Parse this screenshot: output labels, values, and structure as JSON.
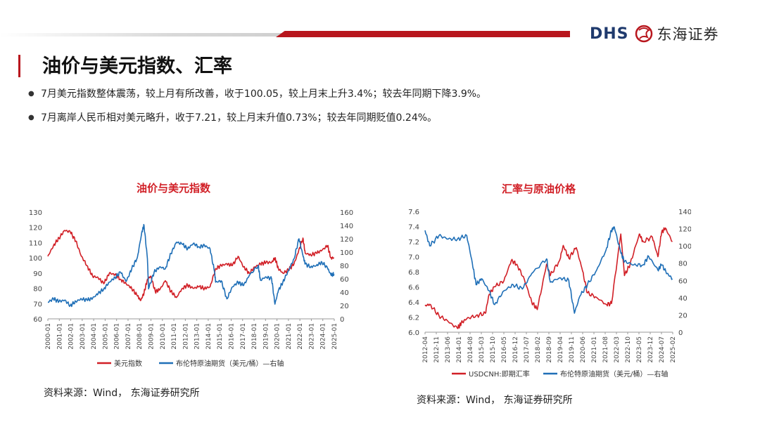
{
  "header": {
    "logo_text": "DHS",
    "logo_cn": "东海证券",
    "title": "油价与美元指数、汇率"
  },
  "bullets": [
    "7月美元指数整体震荡，较上月有所改善，收于100.05，较上月末上升3.4%；较去年同期下降3.9%。",
    "7月离岸人民币相对美元略升，收于7.21，较上月末升值0.73%；较去年同期贬值0.24%。"
  ],
  "colors": {
    "red": "#d11f26",
    "blue": "#1f6fb7",
    "accent": "#b8161d"
  },
  "chart_data": [
    {
      "type": "line",
      "title": "油价与美元指数",
      "source": "资料来源：Wind， 东海证券研究所",
      "left_axis": {
        "min": 60,
        "max": 130,
        "ticks": [
          "60",
          "70",
          "80",
          "90",
          "100",
          "110",
          "120",
          "130"
        ]
      },
      "right_axis": {
        "min": 0,
        "max": 160,
        "ticks": [
          "0",
          "20",
          "40",
          "60",
          "80",
          "100",
          "120",
          "140",
          "160"
        ]
      },
      "x_labels": [
        "2000-01",
        "2001-01",
        "2002-01",
        "2003-01",
        "2004-01",
        "2005-01",
        "2006-01",
        "2007-01",
        "2008-01",
        "2009-01",
        "2010-01",
        "2011-01",
        "2012-01",
        "2013-01",
        "2014-01",
        "2015-01",
        "2016-01",
        "2017-01",
        "2018-01",
        "2019-01",
        "2020-01",
        "2021-01",
        "2022-01",
        "2023-01",
        "2024-01",
        "2025-01"
      ],
      "x_range": [
        2000.0,
        2025.6
      ],
      "legend": "bottom",
      "series": [
        {
          "name": "美元指数",
          "axis": "left",
          "color": "#d11f26",
          "x": [
            2000.0,
            2000.5,
            2001.0,
            2001.5,
            2002.0,
            2002.5,
            2003.0,
            2003.5,
            2004.0,
            2004.5,
            2005.0,
            2005.5,
            2006.0,
            2006.5,
            2007.0,
            2007.5,
            2008.0,
            2008.3,
            2008.6,
            2008.9,
            2009.2,
            2009.6,
            2010.0,
            2010.5,
            2011.0,
            2011.5,
            2012.0,
            2012.5,
            2013.0,
            2013.5,
            2014.0,
            2014.5,
            2015.0,
            2015.5,
            2016.0,
            2016.5,
            2017.0,
            2017.5,
            2018.0,
            2018.5,
            2019.0,
            2019.5,
            2020.0,
            2020.3,
            2020.6,
            2021.0,
            2021.5,
            2022.0,
            2022.4,
            2022.8,
            2023.0,
            2023.5,
            2024.0,
            2024.5,
            2025.0,
            2025.3,
            2025.58
          ],
          "y": [
            101,
            108,
            113,
            118,
            117,
            111,
            101,
            95,
            88,
            87,
            83,
            90,
            89,
            86,
            83,
            80,
            75,
            72,
            77,
            86,
            88,
            78,
            79,
            85,
            78,
            74,
            80,
            82,
            80,
            81,
            80,
            81,
            93,
            95,
            96,
            95,
            101,
            94,
            90,
            94,
            96,
            97,
            97,
            100,
            93,
            90,
            92,
            96,
            104,
            113,
            103,
            102,
            103,
            105,
            108,
            100,
            100
          ]
        },
        {
          "name": "布伦特原油期货（美元/桶）—右轴",
          "axis": "right",
          "color": "#1f6fb7",
          "x": [
            2000.0,
            2000.5,
            2001.0,
            2001.5,
            2002.0,
            2002.5,
            2003.0,
            2003.5,
            2004.0,
            2004.5,
            2005.0,
            2005.5,
            2006.0,
            2006.5,
            2007.0,
            2007.5,
            2008.0,
            2008.4,
            2008.6,
            2008.9,
            2009.0,
            2009.5,
            2010.0,
            2010.5,
            2011.0,
            2011.5,
            2012.0,
            2012.5,
            2013.0,
            2013.5,
            2014.0,
            2014.5,
            2014.9,
            2015.0,
            2015.5,
            2016.0,
            2016.5,
            2017.0,
            2017.5,
            2018.0,
            2018.8,
            2019.0,
            2019.5,
            2020.0,
            2020.3,
            2020.6,
            2021.0,
            2021.5,
            2022.0,
            2022.45,
            2022.8,
            2023.0,
            2023.5,
            2024.0,
            2024.5,
            2025.0,
            2025.3,
            2025.58
          ],
          "y": [
            25,
            30,
            26,
            28,
            20,
            26,
            30,
            28,
            31,
            38,
            45,
            55,
            62,
            70,
            56,
            75,
            92,
            130,
            140,
            90,
            45,
            70,
            78,
            75,
            98,
            115,
            112,
            105,
            113,
            108,
            110,
            105,
            70,
            55,
            57,
            30,
            48,
            55,
            50,
            65,
            80,
            58,
            63,
            60,
            22,
            42,
            55,
            72,
            90,
            120,
            95,
            82,
            78,
            80,
            85,
            76,
            66,
            67
          ]
        }
      ]
    },
    {
      "type": "line",
      "title": "汇率与原油价格",
      "source": "资料来源：Wind， 东海证券研究所",
      "left_axis": {
        "min": 6.0,
        "max": 7.6,
        "ticks": [
          "6.0",
          "6.2",
          "6.4",
          "6.6",
          "6.8",
          "7.0",
          "7.2",
          "7.4",
          "7.6"
        ]
      },
      "right_axis": {
        "min": 0,
        "max": 140,
        "ticks": [
          "0",
          "20",
          "40",
          "60",
          "80",
          "100",
          "120",
          "140"
        ]
      },
      "x_labels": [
        "2012-04",
        "2012-11",
        "2013-06",
        "2014-01",
        "2014-08",
        "2015-03",
        "2015-10",
        "2016-05",
        "2016-12",
        "2017-07",
        "2018-02",
        "2018-09",
        "2019-04",
        "2019-11",
        "2020-06",
        "2021-01",
        "2021-08",
        "2022-03",
        "2022-10",
        "2023-05",
        "2023-12",
        "2024-07",
        "2025-02"
      ],
      "x_range": [
        2012.25,
        2025.6
      ],
      "legend": "bottom",
      "series": [
        {
          "name": "USDCNH:即期汇率",
          "axis": "left",
          "color": "#d11f26",
          "x": [
            2012.25,
            2012.5,
            2013.0,
            2013.5,
            2014.0,
            2014.2,
            2014.5,
            2015.0,
            2015.5,
            2015.7,
            2016.0,
            2016.5,
            2016.9,
            2017.2,
            2017.6,
            2018.0,
            2018.3,
            2018.8,
            2019.0,
            2019.5,
            2019.7,
            2020.0,
            2020.4,
            2020.7,
            2021.0,
            2021.5,
            2022.0,
            2022.3,
            2022.8,
            2023.0,
            2023.3,
            2023.8,
            2024.0,
            2024.5,
            2024.8,
            2025.0,
            2025.2,
            2025.58
          ],
          "y": [
            6.35,
            6.37,
            6.22,
            6.14,
            6.05,
            6.12,
            6.18,
            6.22,
            6.25,
            6.5,
            6.6,
            6.68,
            6.95,
            6.9,
            6.7,
            6.4,
            6.3,
            6.9,
            6.75,
            6.95,
            7.15,
            6.98,
            7.12,
            6.85,
            6.52,
            6.46,
            6.37,
            6.38,
            7.3,
            6.75,
            6.9,
            7.3,
            7.2,
            7.26,
            7.0,
            7.32,
            7.38,
            7.2
          ]
        },
        {
          "name": "布伦特原油期货（美元/桶）—右轴",
          "axis": "right",
          "color": "#1f6fb7",
          "x": [
            2012.25,
            2012.5,
            2013.0,
            2013.5,
            2014.0,
            2014.5,
            2014.8,
            2015.0,
            2015.3,
            2015.7,
            2016.0,
            2016.5,
            2017.0,
            2017.5,
            2018.0,
            2018.8,
            2019.0,
            2019.5,
            2020.0,
            2020.3,
            2020.6,
            2021.0,
            2021.5,
            2022.0,
            2022.3,
            2022.45,
            2022.8,
            2023.0,
            2023.5,
            2024.0,
            2024.3,
            2024.8,
            2025.0,
            2025.3,
            2025.58
          ],
          "y": [
            118,
            100,
            112,
            108,
            108,
            112,
            80,
            55,
            62,
            48,
            32,
            48,
            55,
            50,
            68,
            85,
            58,
            63,
            60,
            22,
            42,
            55,
            72,
            95,
            118,
            122,
            92,
            82,
            78,
            78,
            88,
            72,
            78,
            68,
            62
          ]
        }
      ]
    }
  ]
}
